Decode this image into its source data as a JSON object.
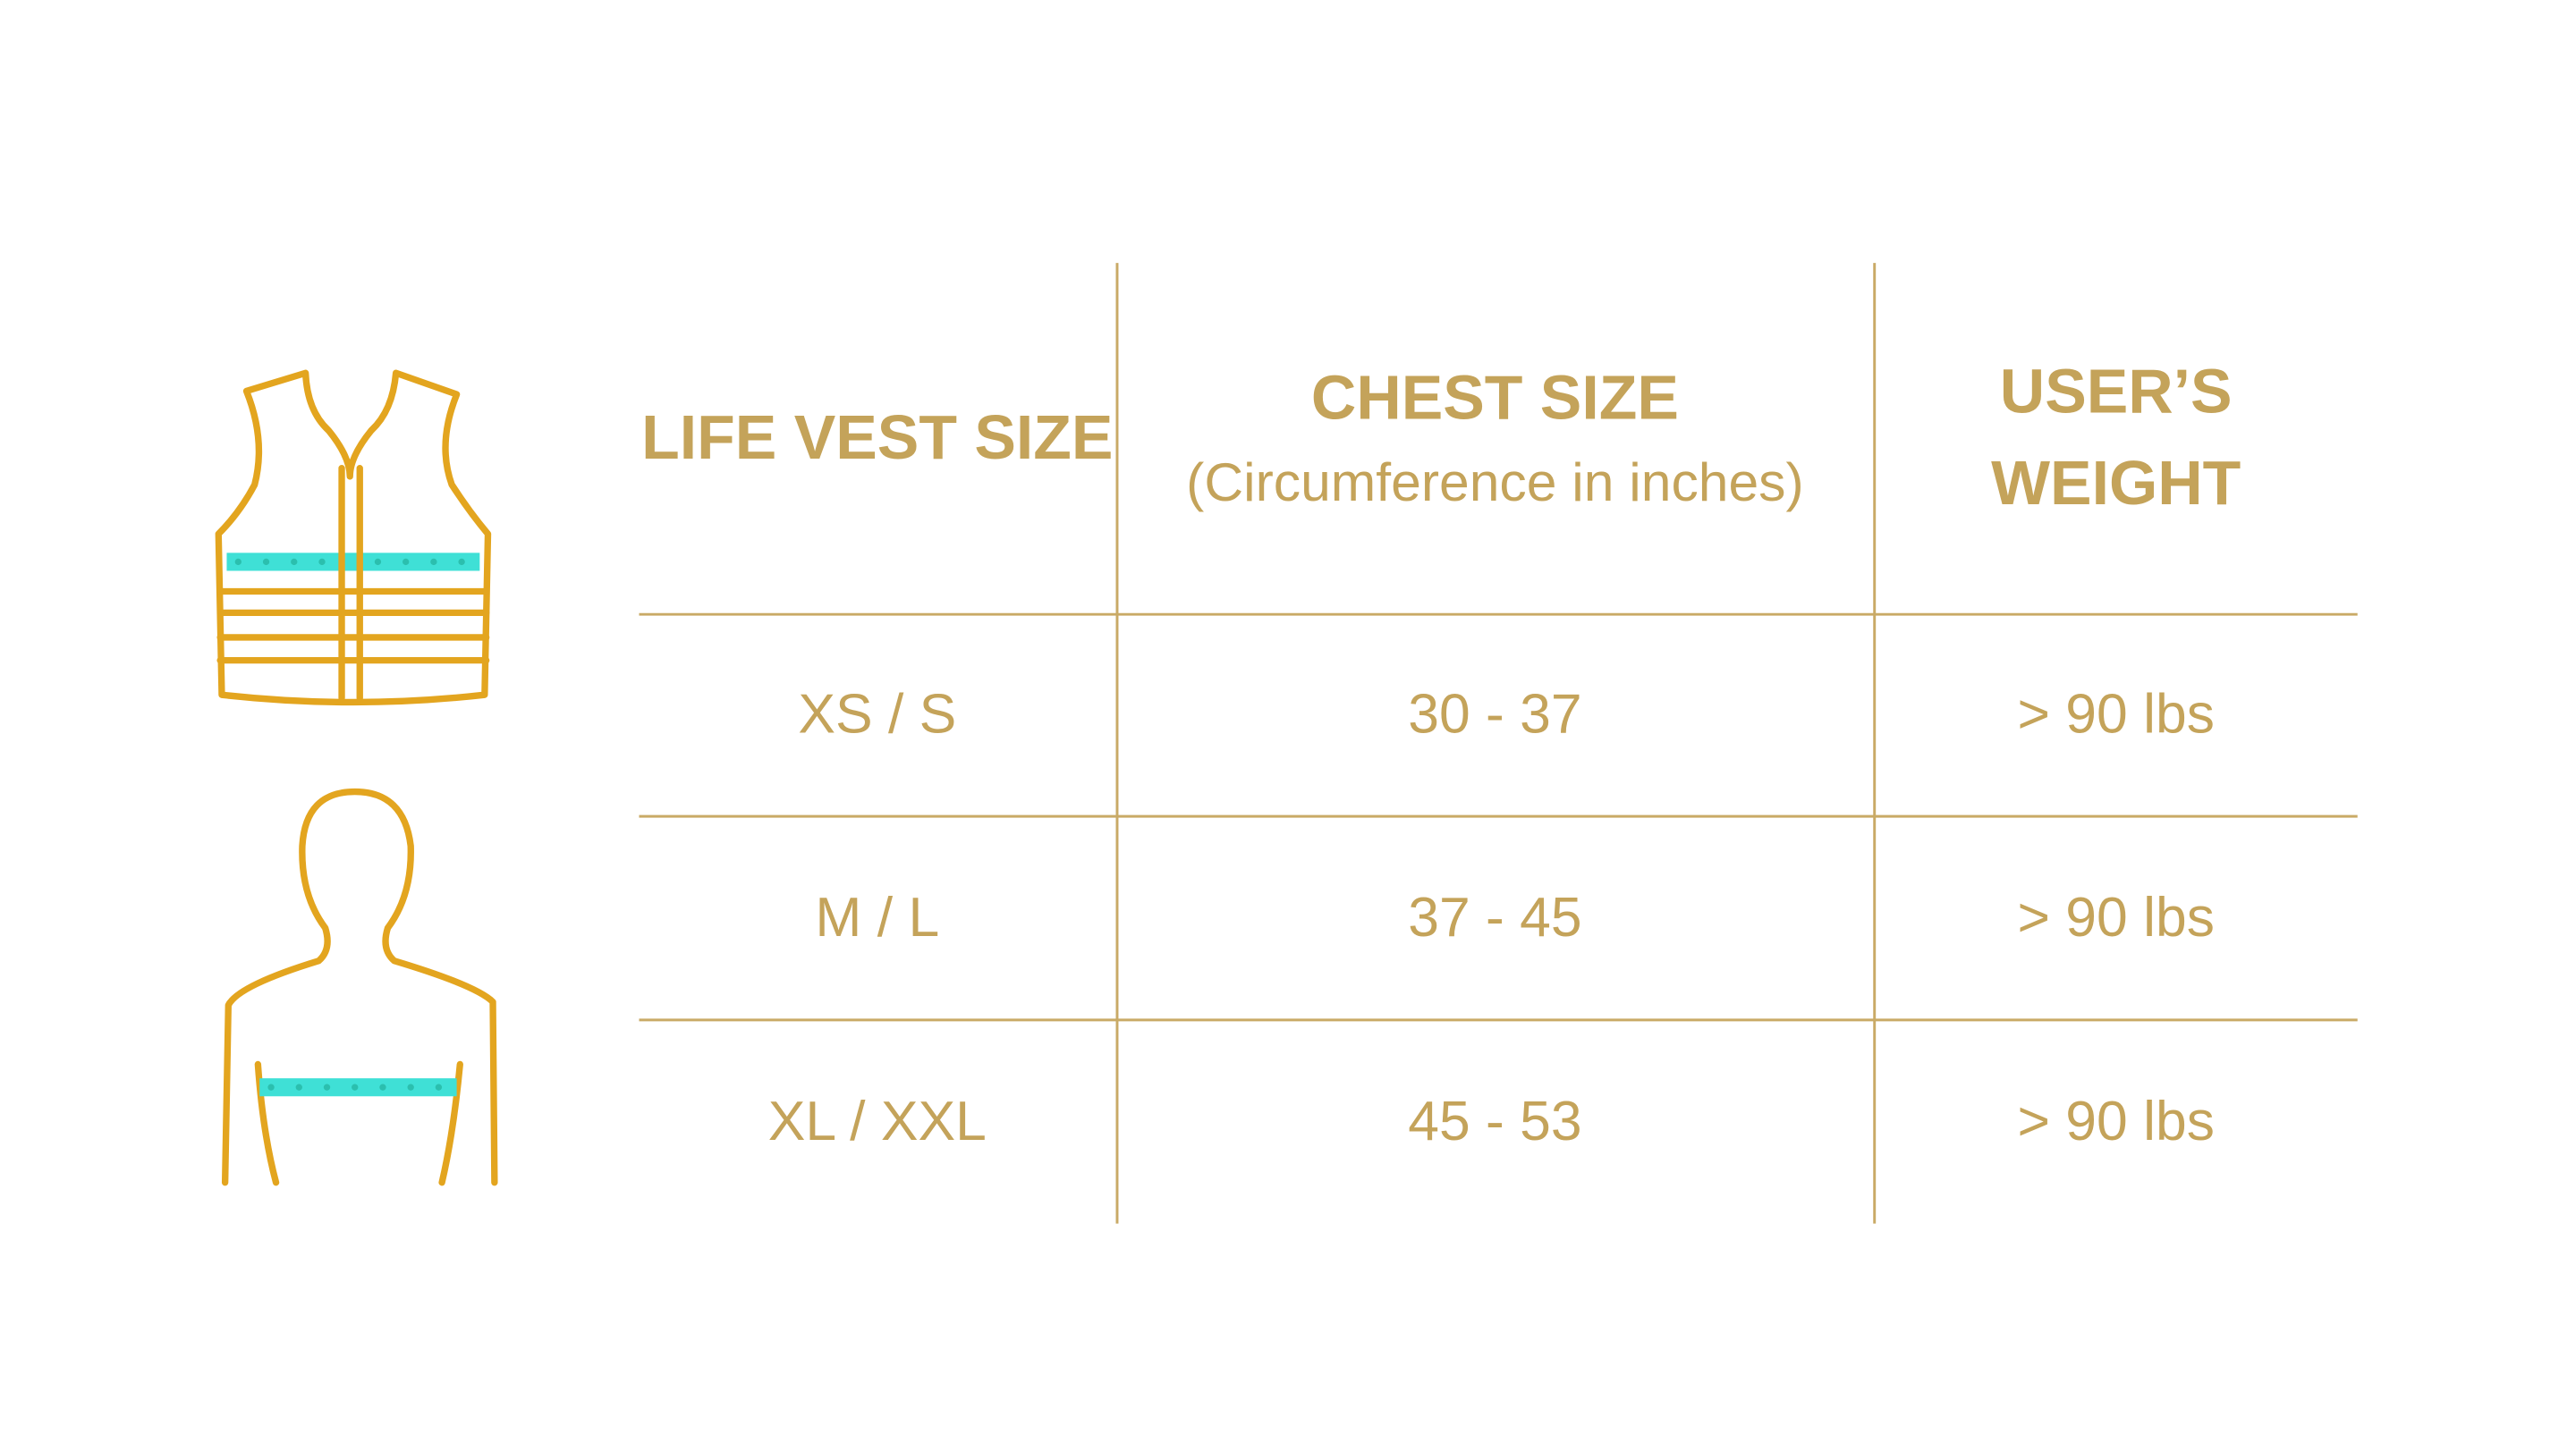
{
  "table": {
    "header": {
      "size": "LIFE VEST SIZE",
      "chest": "CHEST SIZE",
      "chest_note": "(Circumference in inches)",
      "weight": [
        "USER’S",
        "WEIGHT"
      ]
    },
    "rows": [
      [
        "XS / S",
        "30 - 37",
        "> 90 lbs"
      ],
      [
        "M / L",
        "37 - 45",
        "> 90 lbs"
      ],
      [
        "XL / XXL",
        "45 - 53",
        "> 90 lbs"
      ]
    ]
  }
}
